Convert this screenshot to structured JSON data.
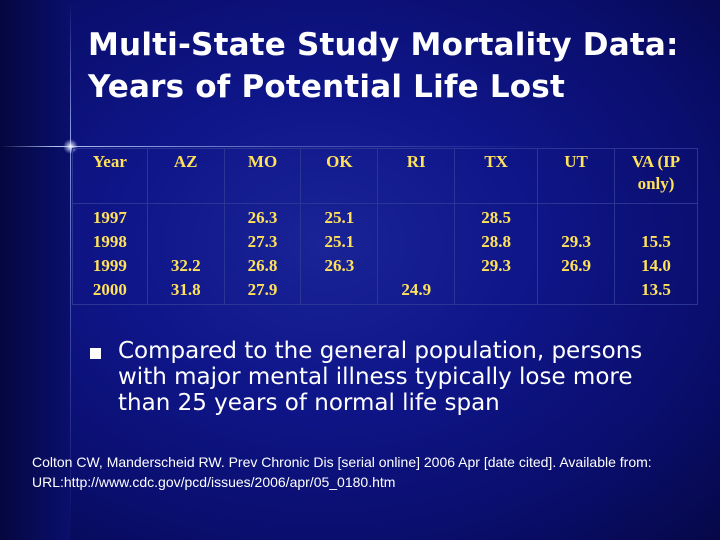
{
  "title": {
    "line1": "Multi-State Study Mortality Data:",
    "line2": "Years of Potential Life Lost"
  },
  "table": {
    "headers": {
      "year": "Year",
      "az": "AZ",
      "mo": "MO",
      "ok": "OK",
      "ri": "RI",
      "tx": "TX",
      "ut": "UT",
      "va_line1": "VA (IP",
      "va_line2": "only)"
    },
    "rows": [
      {
        "year": "1997",
        "az": "",
        "mo": "26.3",
        "ok": "25.1",
        "ri": "",
        "tx": "28.5",
        "ut": "",
        "va": ""
      },
      {
        "year": "1998",
        "az": "",
        "mo": "27.3",
        "ok": "25.1",
        "ri": "",
        "tx": "28.8",
        "ut": "29.3",
        "va": "15.5"
      },
      {
        "year": "1999",
        "az": "32.2",
        "mo": "26.8",
        "ok": "26.3",
        "ri": "",
        "tx": "29.3",
        "ut": "26.9",
        "va": "14.0"
      },
      {
        "year": "2000",
        "az": "31.8",
        "mo": "27.9",
        "ok": "",
        "ri": "24.9",
        "tx": "",
        "ut": "",
        "va": "13.5"
      }
    ]
  },
  "bullet": {
    "text": "Compared to the general population, persons with major mental illness typically lose more than 25 years of normal life span"
  },
  "citation": {
    "text": "Colton CW, Manderscheid RW. Prev Chronic Dis [serial online] 2006 Apr [date cited]. Available from: URL:http://www.cdc.gov/pcd/issues/2006/apr/05_0180.htm"
  },
  "colors": {
    "background": "#0f168a",
    "table_text": "#ffe15a",
    "title_text": "#ffffff"
  }
}
